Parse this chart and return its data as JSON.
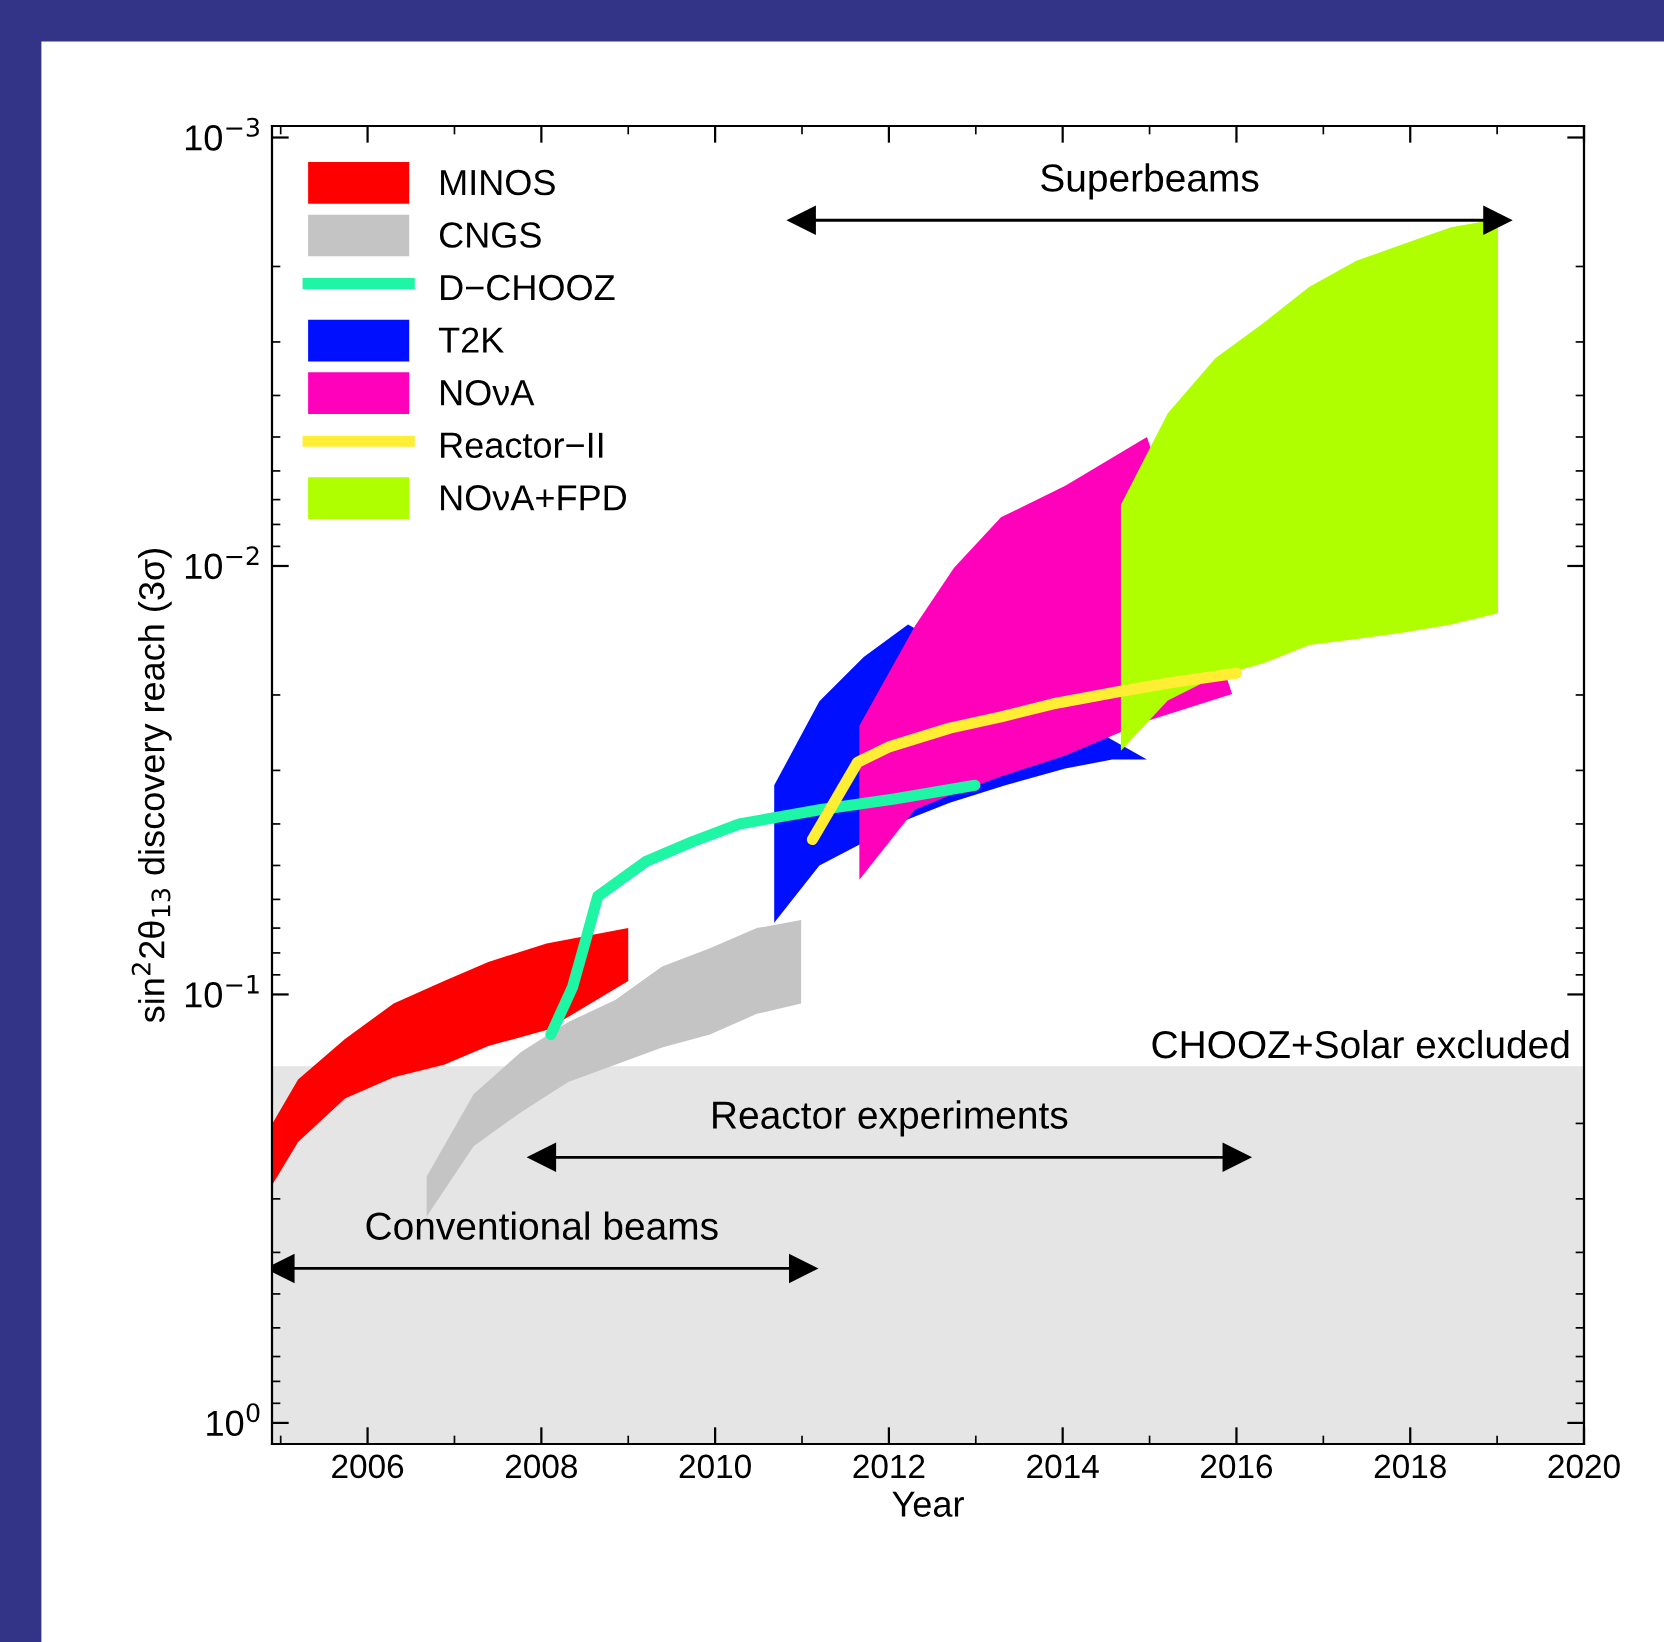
{
  "chart_data": {
    "type": "area",
    "xlabel": "Year",
    "ylabel": "sin$^{2}$2θ$_{13}$ discovery reach (3σ)",
    "xlim": [
      2004.9,
      2020.0
    ],
    "xticks": [
      2006,
      2008,
      2010,
      2012,
      2014,
      2016,
      2018,
      2020
    ],
    "ylim": [
      1.12,
      0.00094
    ],
    "yticks": [
      {
        "value": 1,
        "label": "10$^{0}$"
      },
      {
        "value": 0.1,
        "label": "10$^{−1}$"
      },
      {
        "value": 0.01,
        "label": "10$^{−2}$"
      },
      {
        "value": 0.001,
        "label": "10$^{−3}$"
      }
    ],
    "log": "y",
    "grid": false,
    "legend": "top left",
    "bands": [
      {
        "axis": "y",
        "from": 0.147,
        "to": 1.12,
        "label": "CHOOZ+Solar excluded",
        "color": "#e5e5e5"
      }
    ],
    "series": [
      {
        "name": "MINOS",
        "color": "#ff0000",
        "x": [
          2004.9,
          2005.2,
          2005.74,
          2006.3,
          2006.88,
          2007.39,
          2008.06,
          2009.0,
          2009.0,
          2008.06,
          2007.39,
          2006.88,
          2006.3,
          2005.74,
          2005.2,
          2004.9
        ],
        "values": [
          0.201,
          0.158,
          0.127,
          0.105,
          0.093,
          0.084,
          0.076,
          0.07,
          0.093,
          0.121,
          0.132,
          0.146,
          0.156,
          0.175,
          0.221,
          0.279
        ]
      },
      {
        "name": "CNGS",
        "color": "#c4c4c4",
        "x": [
          2006.68,
          2007.22,
          2007.77,
          2008.31,
          2008.85,
          2009.39,
          2009.94,
          2010.48,
          2010.99,
          2010.99,
          2010.48,
          2009.94,
          2009.39,
          2008.85,
          2008.31,
          2007.77,
          2007.22,
          2006.68
        ],
        "values": [
          0.266,
          0.171,
          0.136,
          0.116,
          0.103,
          0.086,
          0.078,
          0.07,
          0.067,
          0.105,
          0.111,
          0.124,
          0.133,
          0.146,
          0.16,
          0.188,
          0.226,
          0.33
        ]
      },
      {
        "name": "D−CHOOZ",
        "type": "line",
        "color": "#1ef5a5",
        "x": [
          2008.11,
          2008.36,
          2008.5,
          2008.65,
          2009.2,
          2009.74,
          2010.28,
          2011.22,
          2012.06,
          2012.99
        ],
        "values": [
          0.124,
          0.096,
          0.076,
          0.059,
          0.049,
          0.044,
          0.04,
          0.037,
          0.035,
          0.0325
        ]
      },
      {
        "name": "T2K",
        "color": "#0010ff",
        "x": [
          2010.68,
          2011.2,
          2011.71,
          2012.22,
          2014.97,
          2014.57,
          2014.03,
          2013.34,
          2012.7,
          2012.22,
          2011.2,
          2010.68
        ],
        "values": [
          0.0325,
          0.0207,
          0.0163,
          0.0137,
          0.0283,
          0.0283,
          0.0297,
          0.0325,
          0.0357,
          0.039,
          0.05,
          0.068
        ]
      },
      {
        "name": "NOνA",
        "color": "#ff00bb",
        "x": [
          2011.66,
          2012.3,
          2012.75,
          2013.29,
          2014.03,
          2014.97,
          2015.95,
          2014.97,
          2014.03,
          2013.29,
          2012.75,
          2012.3,
          2011.66
        ],
        "values": [
          0.0236,
          0.0138,
          0.0101,
          0.0077,
          0.0065,
          0.005,
          0.0199,
          0.023,
          0.0277,
          0.031,
          0.034,
          0.037,
          0.054
        ]
      },
      {
        "name": "Reactor−II",
        "type": "line",
        "color": "#ffee33",
        "x": [
          2011.12,
          2011.64,
          2012.01,
          2012.7,
          2013.29,
          2013.88,
          2014.67,
          2015.26,
          2016.0
        ],
        "values": [
          0.0435,
          0.0287,
          0.0264,
          0.0239,
          0.0225,
          0.021,
          0.0196,
          0.0187,
          0.0178
        ]
      },
      {
        "name": "NOνA+FPD",
        "color": "#b0ff00",
        "x": [
          2014.67,
          2015.21,
          2015.76,
          2016.3,
          2016.84,
          2017.38,
          2017.93,
          2018.47,
          2019.01,
          2019.01,
          2018.47,
          2017.93,
          2017.38,
          2016.84,
          2016.3,
          2015.76,
          2015.21,
          2014.67
        ],
        "values": [
          0.0072,
          0.0044,
          0.00327,
          0.00272,
          0.00223,
          0.00194,
          0.00177,
          0.00162,
          0.00155,
          0.0129,
          0.0137,
          0.0143,
          0.0148,
          0.0153,
          0.0169,
          0.0181,
          0.0206,
          0.027
        ]
      },
      {
        "type": "line",
        "color": "#000000",
        "marker": "triangle",
        "x": [
          2011.0,
          2019.0
        ],
        "values": [
          0.00156,
          0.00156
        ]
      },
      {
        "type": "line",
        "color": "#000000",
        "marker": "triangle",
        "x": [
          2008.01,
          2016.0
        ],
        "values": [
          0.24,
          0.24
        ]
      },
      {
        "type": "line",
        "color": "#000000",
        "marker": "triangle",
        "x": [
          2005.0,
          2011.01
        ],
        "values": [
          0.436,
          0.436
        ]
      }
    ],
    "annotations": [
      "Superbeams",
      "Reactor experiments",
      "Conventional beams"
    ]
  }
}
